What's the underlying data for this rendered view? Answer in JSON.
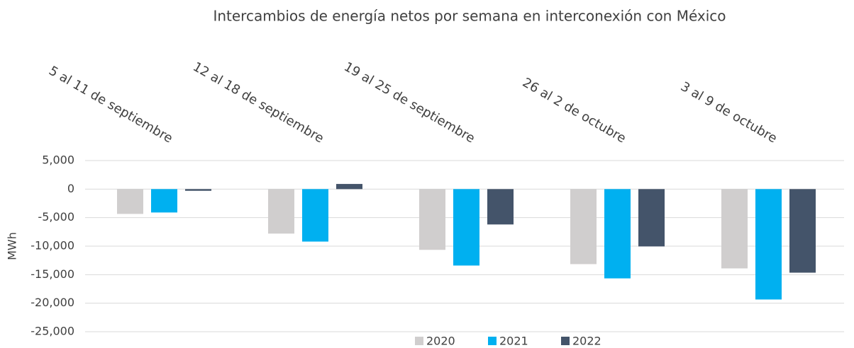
{
  "chart_data": {
    "type": "bar",
    "title": "Intercambios de energía netos por semana en interconexión con México",
    "y_label": "MWh",
    "categories": [
      "5 al 11 de septiembre",
      "12 al 18 de septiembre",
      "19 al 25 de septiembre",
      "26 al 2 de octubre",
      "3 al 9 de octubre"
    ],
    "series": [
      {
        "name": "2020",
        "color": "#d0cece",
        "values": [
          -4350,
          -7800,
          -10650,
          -13150,
          -13900
        ]
      },
      {
        "name": "2021",
        "color": "#00b0f0",
        "values": [
          -4100,
          -9200,
          -13400,
          -15650,
          -19350
        ]
      },
      {
        "name": "2022",
        "color": "#44546a",
        "values": [
          -300,
          900,
          -6200,
          -10050,
          -14650
        ]
      }
    ],
    "ylim": [
      -25000,
      5000
    ],
    "yticks": [
      {
        "value": -25000,
        "label": "-25,000"
      },
      {
        "value": -20000,
        "label": "-20,000"
      },
      {
        "value": -15000,
        "label": "-15,000"
      },
      {
        "value": -10000,
        "label": "-10,000"
      },
      {
        "value": -5000,
        "label": "-5,000"
      },
      0,
      {
        "value": 5000,
        "label": "5,000"
      }
    ],
    "grid": true,
    "legend": "bottom"
  }
}
